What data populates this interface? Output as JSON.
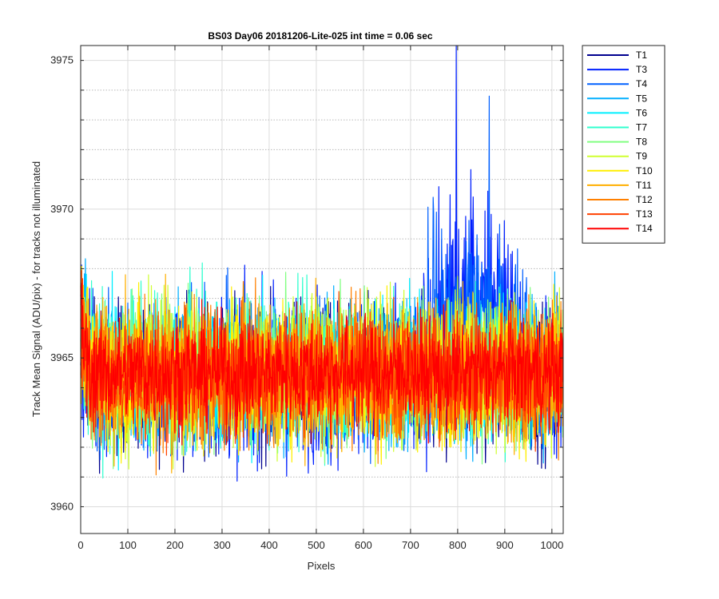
{
  "chart_data": {
    "type": "line",
    "title": "BS03 Day06 20181206-Lite-025 int time = 0.06 sec",
    "xlabel": "Pixels",
    "ylabel": "Track Mean Signal (ADU/pix) - for tracks not illuminated",
    "xlim": [
      0,
      1024
    ],
    "ylim": [
      3959.1,
      3975.5
    ],
    "x_ticks": [
      0,
      100,
      200,
      300,
      400,
      500,
      600,
      700,
      800,
      900,
      1000
    ],
    "y_ticks_labeled": [
      3960,
      3965,
      3970,
      3975
    ],
    "y_gridlines": [
      3960,
      3961,
      3962,
      3963,
      3964,
      3965,
      3966,
      3967,
      3968,
      3969,
      3970,
      3971,
      3972,
      3973,
      3974,
      3975
    ],
    "grid": true,
    "legend_position": "outside-top-right",
    "x_samples": "0..1023 step 1",
    "series": [
      {
        "name": "T1",
        "color": "#00008f",
        "mean": 3964.3,
        "spread": 1.2
      },
      {
        "name": "T3",
        "color": "#0020ff",
        "mean": 3964.3,
        "spread": 1.3,
        "feature": {
          "x_range": [
            710,
            960
          ],
          "raised_mean": 3966.8,
          "peak_x": 797,
          "peak_y": 3975.5
        }
      },
      {
        "name": "T4",
        "color": "#0060ff",
        "mean": 3964.6,
        "spread": 1.2,
        "feature": {
          "x_range": [
            720,
            940
          ],
          "raised_mean": 3966.3,
          "peak_x": 867,
          "peak_y": 3973.8
        }
      },
      {
        "name": "T5",
        "color": "#00afff",
        "mean": 3964.5,
        "spread": 1.2
      },
      {
        "name": "T6",
        "color": "#00efff",
        "mean": 3964.5,
        "spread": 1.2
      },
      {
        "name": "T7",
        "color": "#30ffcf",
        "mean": 3964.6,
        "spread": 1.2
      },
      {
        "name": "T8",
        "color": "#80ff80",
        "mean": 3964.6,
        "spread": 1.2
      },
      {
        "name": "T9",
        "color": "#cfff30",
        "mean": 3964.5,
        "spread": 1.2
      },
      {
        "name": "T10",
        "color": "#ffef00",
        "mean": 3964.5,
        "spread": 1.2
      },
      {
        "name": "T11",
        "color": "#ffaf00",
        "mean": 3964.4,
        "spread": 1.2
      },
      {
        "name": "T12",
        "color": "#ff8000",
        "mean": 3964.4,
        "spread": 1.1
      },
      {
        "name": "T13",
        "color": "#ff4000",
        "mean": 3964.5,
        "spread": 1.0
      },
      {
        "name": "T14",
        "color": "#ff0000",
        "mean": 3964.5,
        "spread": 0.9
      }
    ]
  }
}
